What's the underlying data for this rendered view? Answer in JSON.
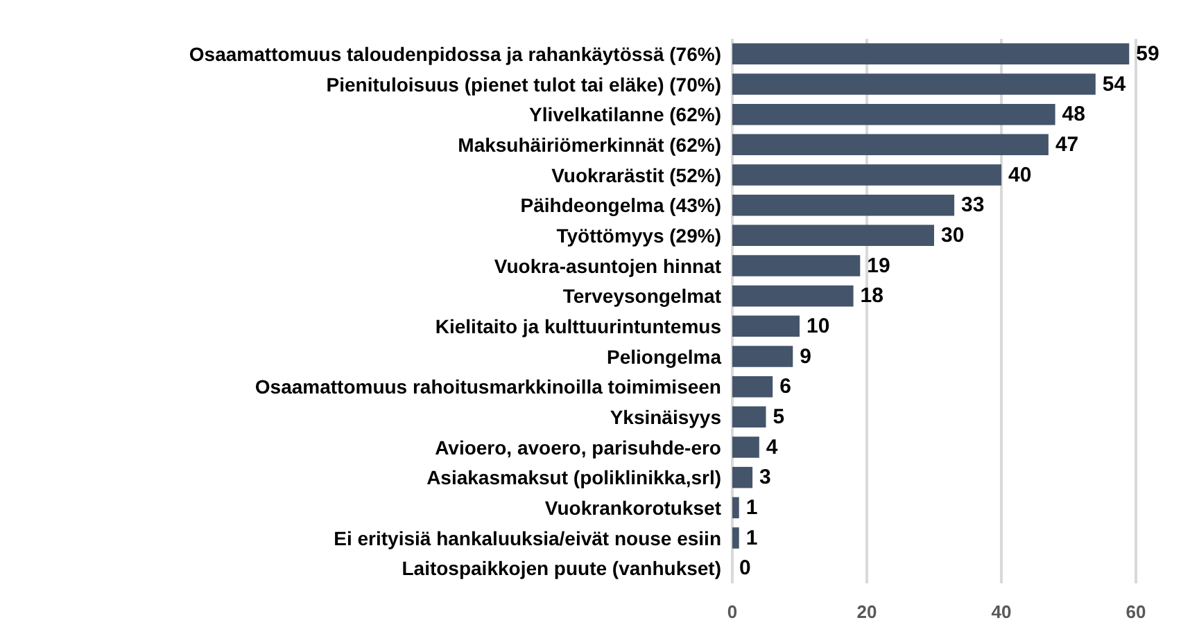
{
  "chart_data": {
    "type": "bar",
    "orientation": "horizontal",
    "categories": [
      "Osaamattomuus taloudenpidossa ja rahankäytössä (76%)",
      "Pienituloisuus (pienet tulot tai eläke) (70%)",
      "Ylivelkatilanne (62%)",
      "Maksuhäiriömerkinnät (62%)",
      "Vuokrarästit (52%)",
      "Päihdeongelma (43%)",
      "Työttömyys (29%)",
      "Vuokra-asuntojen hinnat",
      "Terveysongelmat",
      "Kielitaito ja kulttuurintuntemus",
      "Peliongelma",
      "Osaamattomuus rahoitusmarkkinoilla toimimiseen",
      "Yksinäisyys",
      "Avioero, avoero, parisuhde-ero",
      "Asiakasmaksut (poliklinikka,srl)",
      "Vuokrankorotukset",
      "Ei erityisiä hankaluuksia/eivät nouse esiin",
      "Laitospaikkojen puute (vanhukset)"
    ],
    "values": [
      59,
      54,
      48,
      47,
      40,
      33,
      30,
      19,
      18,
      10,
      9,
      6,
      5,
      4,
      3,
      1,
      1,
      0
    ],
    "color": "#44546a",
    "xlim": [
      0,
      60
    ],
    "xticks": [
      0,
      20,
      40,
      60
    ],
    "grid": "x",
    "data_labels": true
  }
}
